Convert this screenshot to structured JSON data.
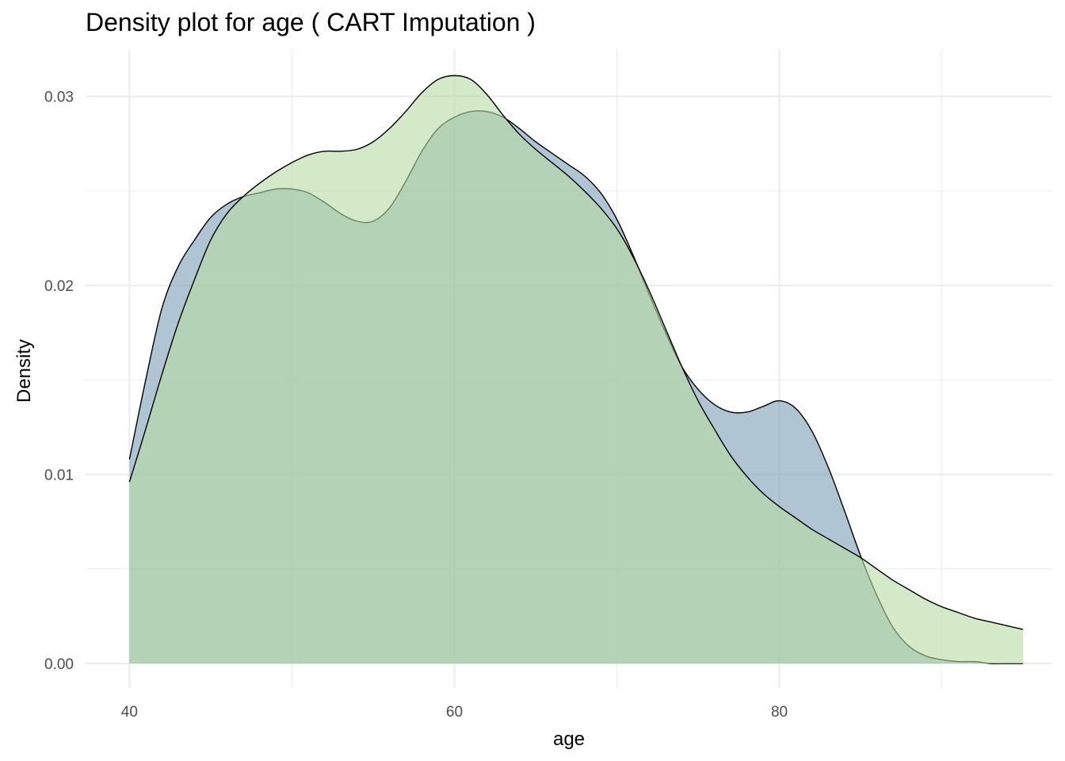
{
  "chart_data": {
    "type": "area",
    "title": "Density plot for age ( CART Imputation )",
    "xlabel": "age",
    "ylabel": "Density",
    "xlim": [
      37.3,
      96.8
    ],
    "ylim": [
      -0.0013,
      0.0325
    ],
    "x_ticks": [
      40,
      60,
      80
    ],
    "x_tick_labels": [
      "40",
      "60",
      "80"
    ],
    "x_minor_ticks": [
      50,
      70,
      90
    ],
    "y_ticks": [
      0.0,
      0.01,
      0.02,
      0.03
    ],
    "y_tick_labels": [
      "0.00",
      "0.01",
      "0.02",
      "0.03"
    ],
    "y_minor_ticks": [
      0.005,
      0.015,
      0.025
    ],
    "grid": true,
    "legend": "none",
    "colors": {
      "observed": "#7a9fb7",
      "imputed": "#b5dba1",
      "outline": "#000000",
      "grid": "#ebebeb"
    },
    "series": [
      {
        "x": [
          40,
          41,
          42,
          43,
          44,
          45,
          46,
          47,
          48,
          49,
          50,
          51,
          52,
          53,
          54,
          55,
          56,
          57,
          58,
          59,
          60,
          61,
          62,
          63,
          64,
          65,
          66,
          67,
          68,
          69,
          70,
          71,
          72,
          73,
          74,
          75,
          76,
          77,
          78,
          79,
          80,
          81,
          82,
          83,
          84,
          85,
          86,
          87,
          88,
          89,
          90,
          91,
          92,
          93,
          94,
          95
        ],
        "values": [
          0.0108,
          0.015,
          0.0188,
          0.021,
          0.0224,
          0.0236,
          0.0243,
          0.0247,
          0.0249,
          0.0251,
          0.0251,
          0.0249,
          0.0244,
          0.0238,
          0.0234,
          0.0234,
          0.0241,
          0.0255,
          0.0271,
          0.0283,
          0.0289,
          0.0292,
          0.0292,
          0.0289,
          0.0283,
          0.0276,
          0.027,
          0.0264,
          0.0258,
          0.0249,
          0.0235,
          0.0216,
          0.0195,
          0.0175,
          0.0157,
          0.0145,
          0.0137,
          0.0133,
          0.0133,
          0.0136,
          0.0139,
          0.0135,
          0.0123,
          0.0104,
          0.0081,
          0.0057,
          0.0036,
          0.0019,
          0.0009,
          0.0004,
          0.0002,
          0.0001,
          0.0001,
          0.0,
          0.0,
          0.0
        ]
      },
      {
        "x": [
          40,
          41,
          42,
          43,
          44,
          45,
          46,
          47,
          48,
          49,
          50,
          51,
          52,
          53,
          54,
          55,
          56,
          57,
          58,
          59,
          60,
          61,
          62,
          63,
          64,
          65,
          66,
          67,
          68,
          69,
          70,
          71,
          72,
          73,
          74,
          75,
          76,
          77,
          78,
          79,
          80,
          81,
          82,
          83,
          84,
          85,
          86,
          87,
          88,
          89,
          90,
          91,
          92,
          93,
          94,
          95
        ],
        "values": [
          0.0096,
          0.0124,
          0.0153,
          0.018,
          0.0203,
          0.0224,
          0.0238,
          0.0247,
          0.0254,
          0.026,
          0.0265,
          0.0269,
          0.0271,
          0.0271,
          0.0272,
          0.0276,
          0.0283,
          0.0292,
          0.0302,
          0.0309,
          0.0311,
          0.0309,
          0.0301,
          0.029,
          0.028,
          0.0272,
          0.0265,
          0.0258,
          0.025,
          0.0241,
          0.023,
          0.0215,
          0.0197,
          0.0177,
          0.0157,
          0.0139,
          0.0124,
          0.011,
          0.0099,
          0.009,
          0.0083,
          0.0077,
          0.0071,
          0.0066,
          0.0061,
          0.0056,
          0.005,
          0.0044,
          0.0039,
          0.0034,
          0.003,
          0.0027,
          0.0024,
          0.0022,
          0.002,
          0.0018
        ]
      }
    ]
  }
}
